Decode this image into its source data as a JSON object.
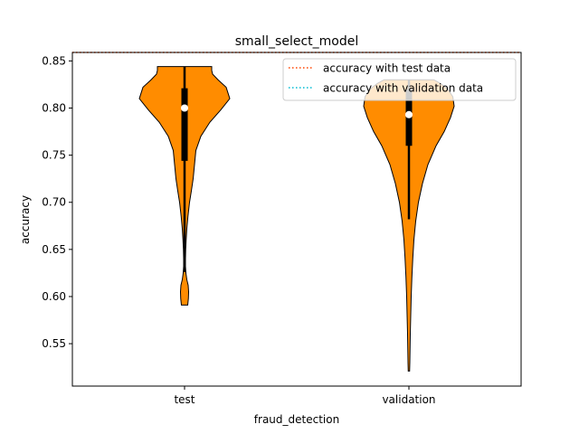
{
  "chart_data": {
    "type": "violin",
    "title": "small_select_model",
    "xlabel": "fraud_detection",
    "ylabel": "accuracy",
    "categories": [
      "test",
      "validation"
    ],
    "ylim": [
      0.505,
      0.859
    ],
    "yticks": [
      0.55,
      0.6,
      0.65,
      0.7,
      0.75,
      0.8,
      0.85
    ],
    "ytick_labels": [
      "0.55",
      "0.60",
      "0.65",
      "0.70",
      "0.75",
      "0.80",
      "0.85"
    ],
    "grid": false,
    "legend_position": "top-right",
    "colors": {
      "violin_fill": "#ff8c00",
      "violin_edge": "#000000",
      "box": "#000000",
      "median_marker": "#ffffff",
      "test_line": "#ff4500",
      "validation_line": "#00bcd4"
    },
    "reference_lines": [
      {
        "name": "accuracy with test data",
        "y": 0.859,
        "style": "dotted",
        "color": "#ff4500"
      },
      {
        "name": "accuracy with validation data",
        "y": null,
        "style": "dotted",
        "color": "#00bcd4"
      }
    ],
    "series": [
      {
        "category": "test",
        "min": 0.591,
        "max": 0.844,
        "q1": 0.744,
        "q3": 0.821,
        "median": 0.8,
        "whisker_low": 0.626,
        "whisker_high": 0.844,
        "profile": [
          [
            0.591,
            0.07
          ],
          [
            0.598,
            0.085
          ],
          [
            0.605,
            0.09
          ],
          [
            0.612,
            0.08
          ],
          [
            0.618,
            0.05
          ],
          [
            0.625,
            0.03
          ],
          [
            0.632,
            0.02
          ],
          [
            0.64,
            0.02
          ],
          [
            0.65,
            0.025
          ],
          [
            0.66,
            0.035
          ],
          [
            0.672,
            0.05
          ],
          [
            0.685,
            0.075
          ],
          [
            0.7,
            0.11
          ],
          [
            0.712,
            0.15
          ],
          [
            0.725,
            0.19
          ],
          [
            0.74,
            0.22
          ],
          [
            0.755,
            0.25
          ],
          [
            0.77,
            0.36
          ],
          [
            0.785,
            0.56
          ],
          [
            0.798,
            0.8
          ],
          [
            0.81,
            1.0
          ],
          [
            0.822,
            0.92
          ],
          [
            0.83,
            0.74
          ],
          [
            0.836,
            0.62
          ],
          [
            0.84,
            0.6
          ],
          [
            0.844,
            0.6
          ]
        ]
      },
      {
        "category": "validation",
        "min": 0.521,
        "max": 0.83,
        "q1": 0.76,
        "q3": 0.82,
        "median": 0.793,
        "whisker_low": 0.682,
        "whisker_high": 0.83,
        "profile": [
          [
            0.521,
            0.015
          ],
          [
            0.53,
            0.02
          ],
          [
            0.545,
            0.025
          ],
          [
            0.56,
            0.03
          ],
          [
            0.58,
            0.04
          ],
          [
            0.6,
            0.05
          ],
          [
            0.62,
            0.065
          ],
          [
            0.64,
            0.085
          ],
          [
            0.66,
            0.11
          ],
          [
            0.68,
            0.15
          ],
          [
            0.7,
            0.21
          ],
          [
            0.72,
            0.3
          ],
          [
            0.74,
            0.42
          ],
          [
            0.76,
            0.6
          ],
          [
            0.775,
            0.78
          ],
          [
            0.79,
            0.92
          ],
          [
            0.802,
            1.0
          ],
          [
            0.812,
            0.97
          ],
          [
            0.82,
            0.86
          ],
          [
            0.826,
            0.7
          ],
          [
            0.83,
            0.55
          ]
        ]
      }
    ]
  }
}
